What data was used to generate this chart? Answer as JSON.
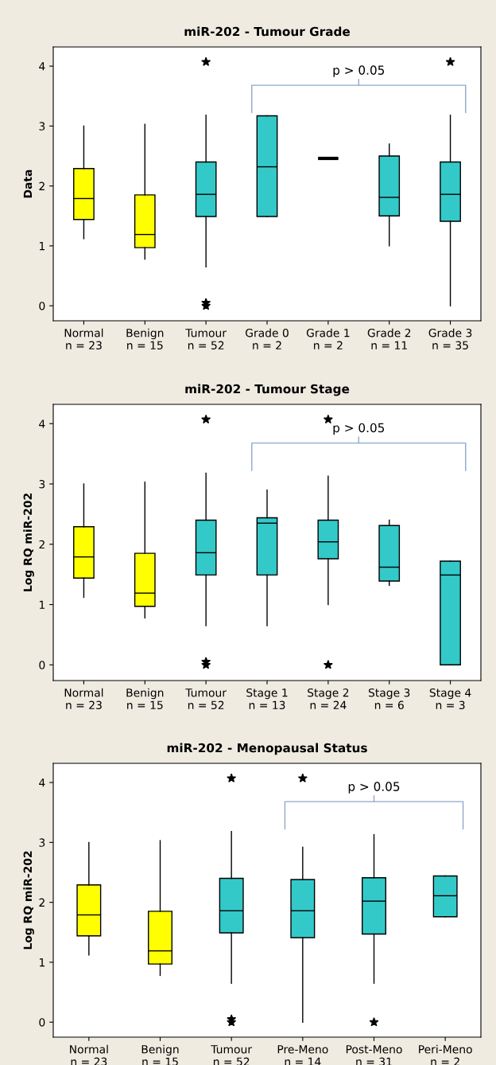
{
  "chart_data": [
    {
      "type": "box",
      "title": "miR-202 - Tumour Grade",
      "ylabel": "Data",
      "ylim": [
        -0.25,
        4.32
      ],
      "yticks": [
        0,
        1,
        2,
        3,
        4
      ],
      "grid": false,
      "legend": false,
      "categories": [
        "Normal\nn = 23",
        "Benign\nn = 15",
        "Tumour\nn = 52",
        "Grade 0\nn = 2",
        "Grade 1\nn = 2",
        "Grade 2\nn = 11",
        "Grade 3\nn = 35"
      ],
      "colors": [
        "#ffff00",
        "#ffff00",
        "#33c9c9",
        "#33c9c9",
        "#000000",
        "#33c9c9",
        "#33c9c9"
      ],
      "boxes": [
        {
          "low": 1.12,
          "q1": 1.44,
          "median": 1.79,
          "q3": 2.29,
          "high": 3.0
        },
        {
          "low": 0.78,
          "q1": 0.97,
          "median": 1.19,
          "q3": 1.85,
          "high": 3.03
        },
        {
          "low": 0.65,
          "q1": 1.49,
          "median": 1.86,
          "q3": 2.4,
          "high": 3.18,
          "outliers": [
            4.07,
            0.05,
            0.0
          ]
        },
        {
          "low": 1.49,
          "q1": 1.49,
          "median": 2.32,
          "q3": 3.17,
          "high": 3.17
        },
        {
          "low": 2.46,
          "q1": 2.46,
          "median": 2.46,
          "q3": 2.46,
          "high": 2.46
        },
        {
          "low": 1.0,
          "q1": 1.5,
          "median": 1.81,
          "q3": 2.5,
          "high": 2.7
        },
        {
          "low": 0.0,
          "q1": 1.41,
          "median": 1.86,
          "q3": 2.4,
          "high": 3.18,
          "outliers": [
            4.07
          ]
        }
      ],
      "annotations": [
        "p > 0.05"
      ]
    },
    {
      "type": "box",
      "title": "miR-202 - Tumour Stage",
      "ylabel": "Log RQ miR-202",
      "ylim": [
        -0.26,
        4.32
      ],
      "yticks": [
        0,
        1,
        2,
        3,
        4
      ],
      "grid": false,
      "legend": false,
      "categories": [
        "Normal\nn = 23",
        "Benign\nn = 15",
        "Tumour\nn = 52",
        "Stage 1\nn = 13",
        "Stage 2\nn = 24",
        "Stage 3\nn = 6",
        "Stage 4\nn = 3"
      ],
      "colors": [
        "#ffff00",
        "#ffff00",
        "#33c9c9",
        "#33c9c9",
        "#33c9c9",
        "#33c9c9",
        "#33c9c9"
      ],
      "boxes": [
        {
          "low": 1.12,
          "q1": 1.44,
          "median": 1.79,
          "q3": 2.29,
          "high": 3.0
        },
        {
          "low": 0.78,
          "q1": 0.97,
          "median": 1.19,
          "q3": 1.85,
          "high": 3.03
        },
        {
          "low": 0.65,
          "q1": 1.49,
          "median": 1.86,
          "q3": 2.4,
          "high": 3.18,
          "outliers": [
            4.07,
            0.05,
            0.0
          ]
        },
        {
          "low": 0.65,
          "q1": 1.49,
          "median": 2.35,
          "q3": 2.44,
          "high": 2.9
        },
        {
          "low": 1.0,
          "q1": 1.76,
          "median": 2.04,
          "q3": 2.4,
          "high": 3.13,
          "outliers": [
            4.07,
            0.0
          ]
        },
        {
          "low": 1.32,
          "q1": 1.39,
          "median": 1.62,
          "q3": 2.31,
          "high": 2.4
        },
        {
          "low": 0.0,
          "q1": 0.0,
          "median": 1.49,
          "q3": 1.72,
          "high": 1.72
        }
      ],
      "annotations": [
        "p > 0.05"
      ]
    },
    {
      "type": "box",
      "title": "miR-202 - Menopausal Status",
      "ylabel": "Log RQ miR-202",
      "ylim": [
        -0.25,
        4.32
      ],
      "yticks": [
        0,
        1,
        2,
        3,
        4
      ],
      "grid": false,
      "legend": false,
      "categories": [
        "Normal\nn = 23",
        "Benign\nn = 15",
        "Tumour\nn = 52",
        "Pre-Meno\nn = 14",
        "Post-Meno\nn = 31",
        "Peri-Meno\nn = 2"
      ],
      "colors": [
        "#ffff00",
        "#ffff00",
        "#33c9c9",
        "#33c9c9",
        "#33c9c9",
        "#33c9c9"
      ],
      "boxes": [
        {
          "low": 1.12,
          "q1": 1.44,
          "median": 1.79,
          "q3": 2.29,
          "high": 3.0
        },
        {
          "low": 0.78,
          "q1": 0.97,
          "median": 1.19,
          "q3": 1.85,
          "high": 3.03
        },
        {
          "low": 0.65,
          "q1": 1.49,
          "median": 1.86,
          "q3": 2.4,
          "high": 3.18,
          "outliers": [
            4.07,
            0.05,
            0.0
          ]
        },
        {
          "low": 0.0,
          "q1": 1.41,
          "median": 1.86,
          "q3": 2.38,
          "high": 2.92,
          "outliers": [
            4.07
          ]
        },
        {
          "low": 0.65,
          "q1": 1.47,
          "median": 2.02,
          "q3": 2.41,
          "high": 3.13,
          "outliers": [
            0.0
          ]
        },
        {
          "low": 1.76,
          "q1": 1.76,
          "median": 2.11,
          "q3": 2.44,
          "high": 2.44
        }
      ],
      "annotations": [
        "p > 0.05"
      ]
    }
  ]
}
